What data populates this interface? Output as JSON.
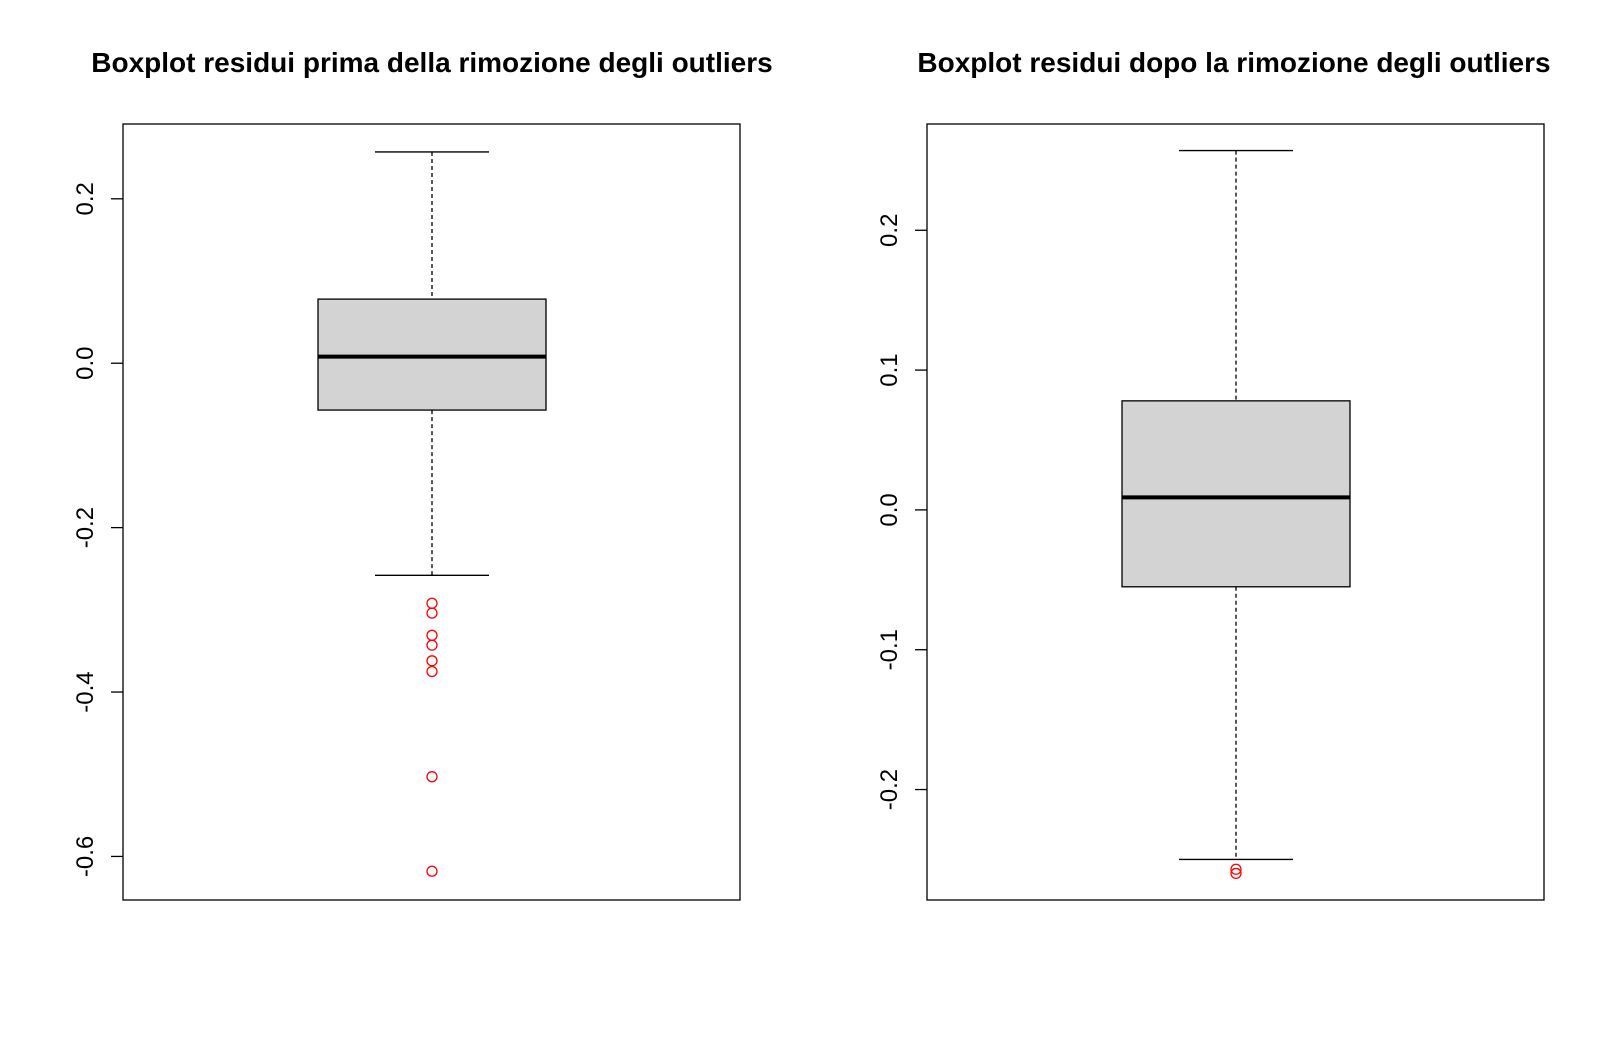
{
  "chart_data": [
    {
      "type": "box",
      "title": "Boxplot residui prima della rimozione degli outliers",
      "ylim": [
        -0.653,
        0.291
      ],
      "yticks": [
        -0.6,
        -0.4,
        -0.2,
        0.0,
        0.2
      ],
      "ytick_labels": [
        "-0.6",
        "-0.4",
        "-0.2",
        "0.0",
        "0.2"
      ],
      "box": {
        "whisker_low": -0.258,
        "q1": -0.057,
        "median": 0.008,
        "q3": 0.078,
        "whisker_high": 0.257
      },
      "outliers": [
        -0.292,
        -0.304,
        -0.331,
        -0.343,
        -0.362,
        -0.375,
        -0.503,
        -0.618
      ],
      "box_fill": "#d3d3d3",
      "outlier_color": "#ff0000"
    },
    {
      "type": "box",
      "title": "Boxplot residui dopo la rimozione degli outliers",
      "ylim": [
        -0.279,
        0.276
      ],
      "yticks": [
        -0.2,
        -0.1,
        0.0,
        0.1,
        0.2
      ],
      "ytick_labels": [
        "-0.2",
        "-0.1",
        "0.0",
        "0.1",
        "0.2"
      ],
      "box": {
        "whisker_low": -0.25,
        "q1": -0.055,
        "median": 0.009,
        "q3": 0.078,
        "whisker_high": 0.257
      },
      "outliers": [
        -0.257,
        -0.26
      ],
      "box_fill": "#d3d3d3",
      "outlier_color": "#ff0000"
    }
  ]
}
